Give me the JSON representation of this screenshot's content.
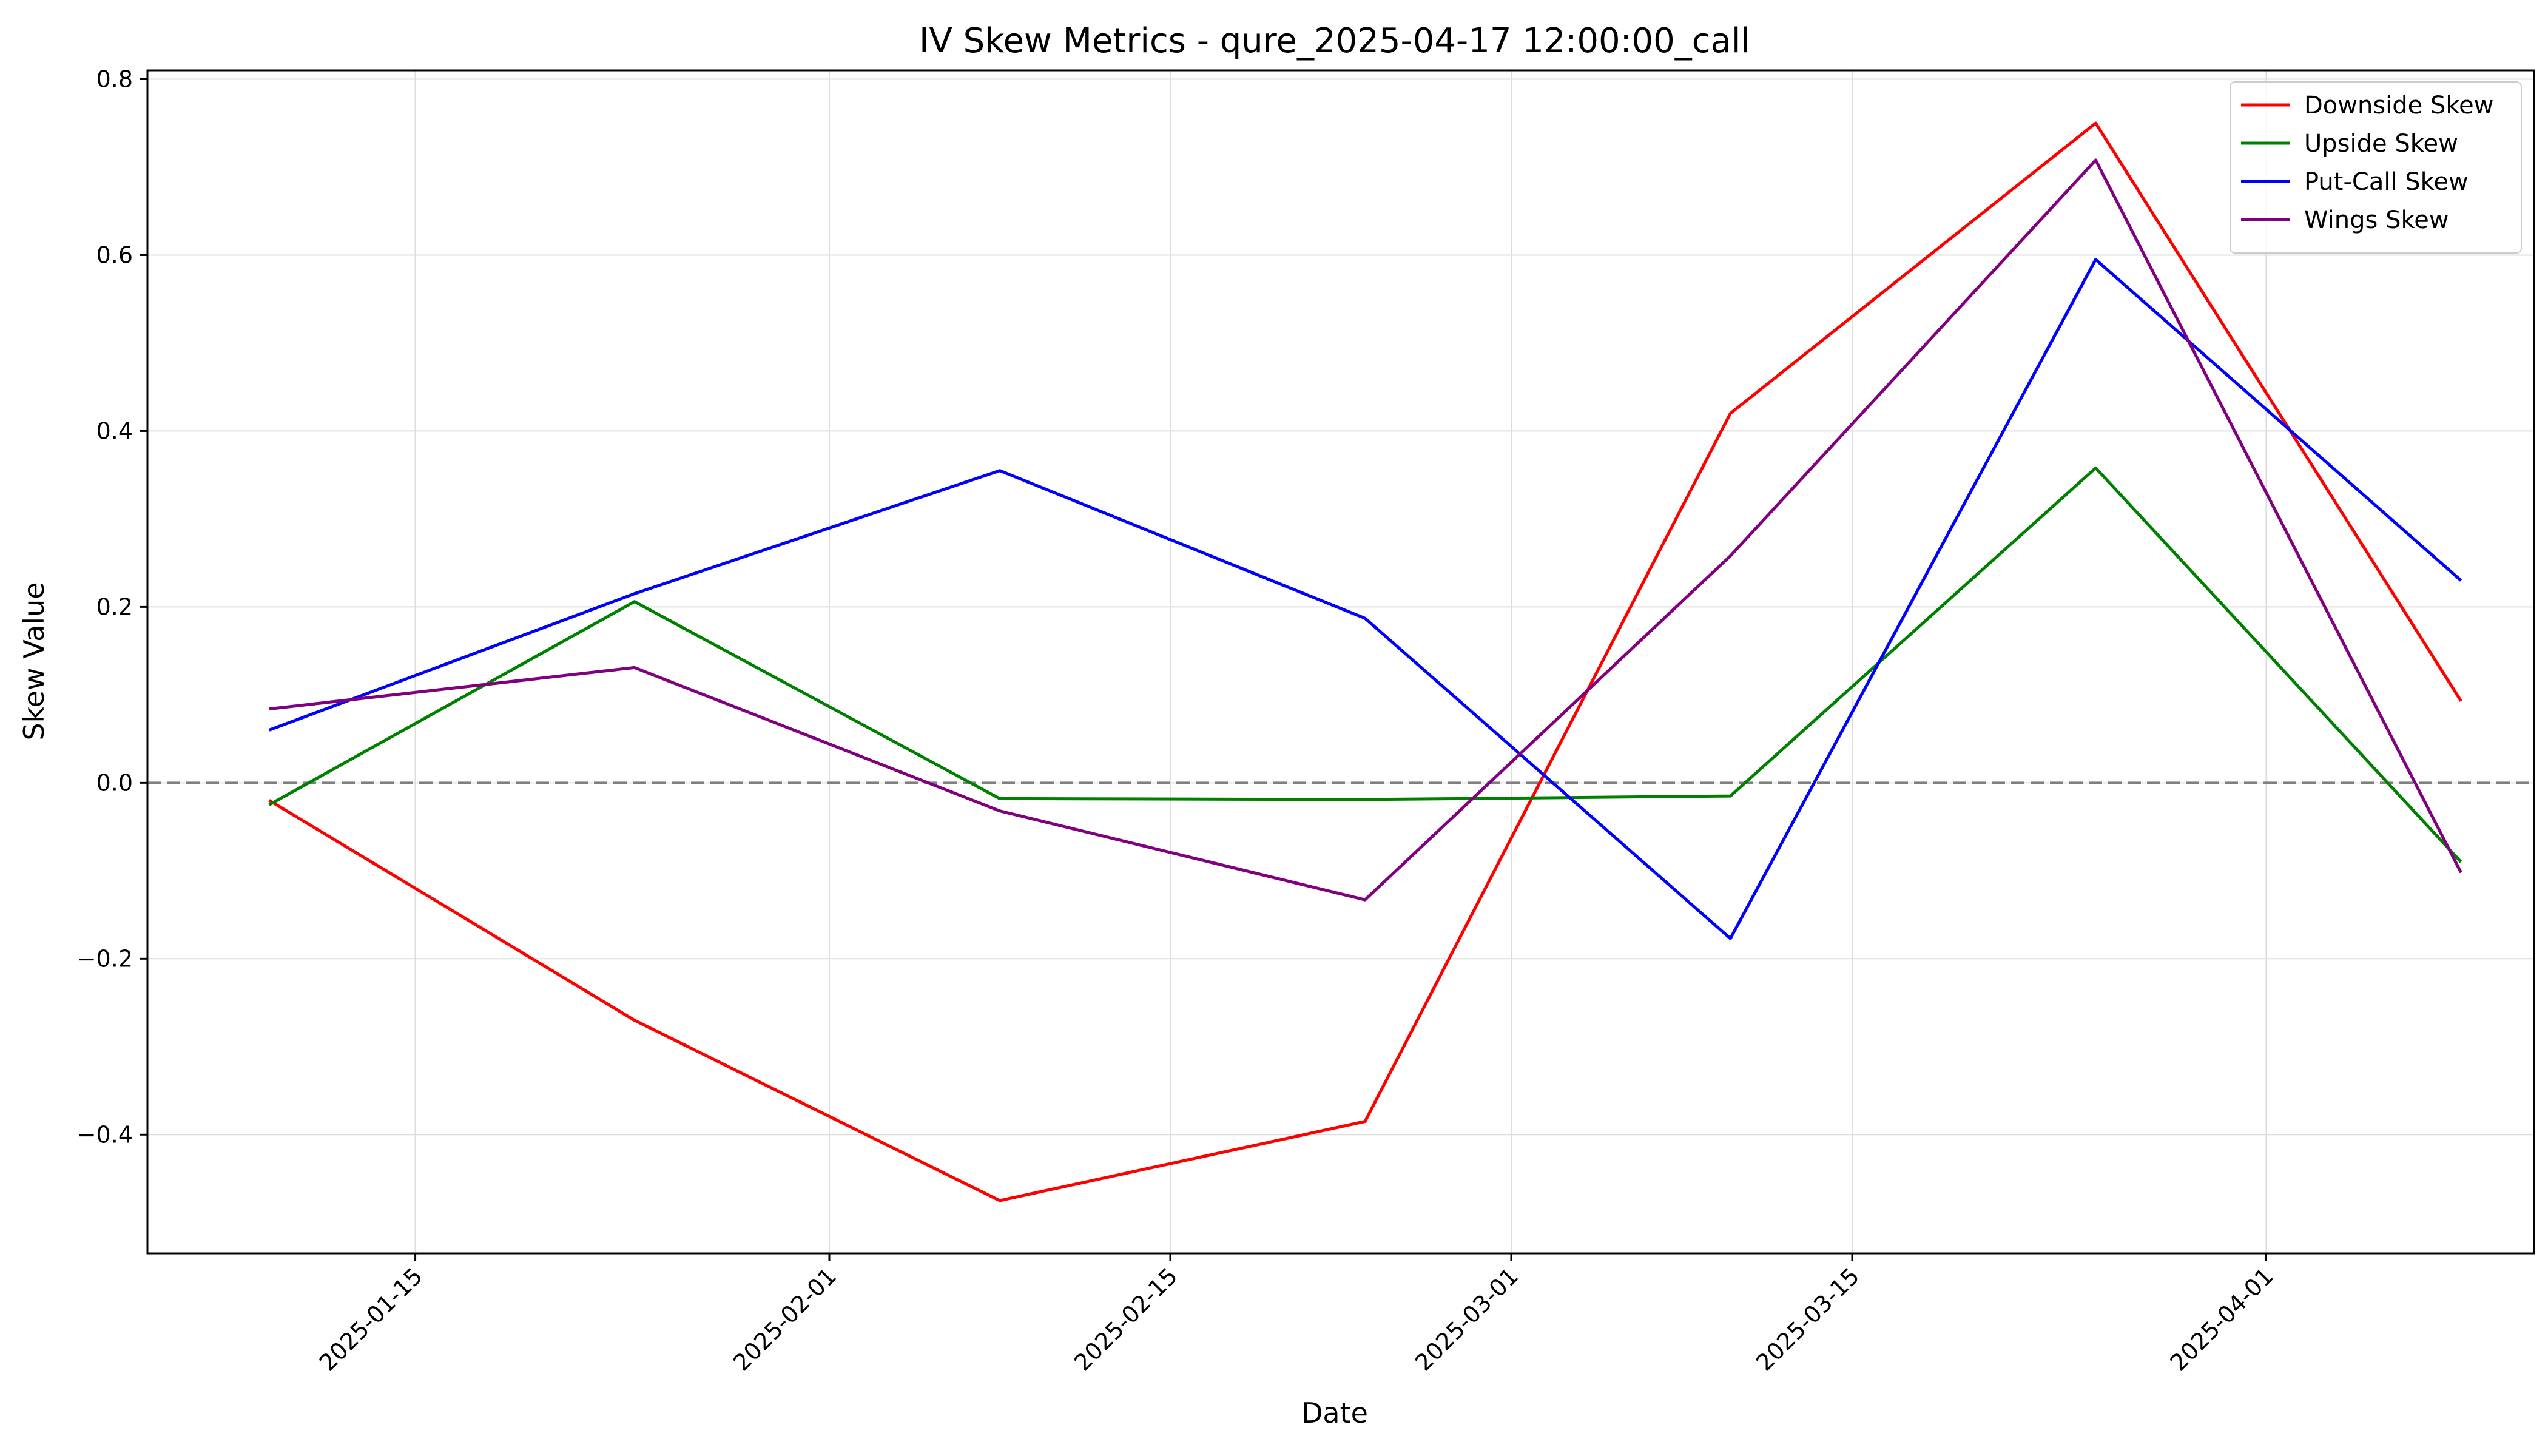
{
  "chart_data": {
    "type": "line",
    "title": "IV Skew Metrics - qure_2025-04-17 12:00:00_call",
    "xlabel": "Date",
    "ylabel": "Skew Value",
    "x": [
      "2025-01-09",
      "2025-01-24",
      "2025-02-08",
      "2025-02-23",
      "2025-03-10",
      "2025-03-25",
      "2025-04-09"
    ],
    "xlim": [
      "2025-01-04",
      "2025-04-12"
    ],
    "ylim": [
      -0.535,
      0.81
    ],
    "x_ticks": [
      "2025-01-15",
      "2025-02-01",
      "2025-02-15",
      "2025-03-01",
      "2025-03-15",
      "2025-04-01"
    ],
    "y_ticks": [
      -0.4,
      -0.2,
      0.0,
      0.2,
      0.4,
      0.6,
      0.8
    ],
    "y_tick_labels": [
      "−0.4",
      "−0.2",
      "0.0",
      "0.2",
      "0.4",
      "0.6",
      "0.8"
    ],
    "grid": true,
    "reference_line": {
      "y": 0.0,
      "style": "dashed",
      "color": "#808080"
    },
    "legend_position": "top-right",
    "series": [
      {
        "name": "Downside Skew",
        "color": "#ff0000",
        "values": [
          -0.02,
          -0.27,
          -0.475,
          -0.385,
          0.42,
          0.75,
          0.093
        ]
      },
      {
        "name": "Upside Skew",
        "color": "#008000",
        "values": [
          -0.025,
          0.206,
          -0.018,
          -0.019,
          -0.015,
          0.358,
          -0.09
        ]
      },
      {
        "name": "Put-Call Skew",
        "color": "#0000ff",
        "values": [
          0.06,
          0.215,
          0.355,
          0.187,
          -0.177,
          0.595,
          0.23
        ]
      },
      {
        "name": "Wings Skew",
        "color": "#800080",
        "values": [
          0.084,
          0.131,
          -0.032,
          -0.133,
          0.258,
          0.708,
          -0.102
        ]
      }
    ]
  }
}
